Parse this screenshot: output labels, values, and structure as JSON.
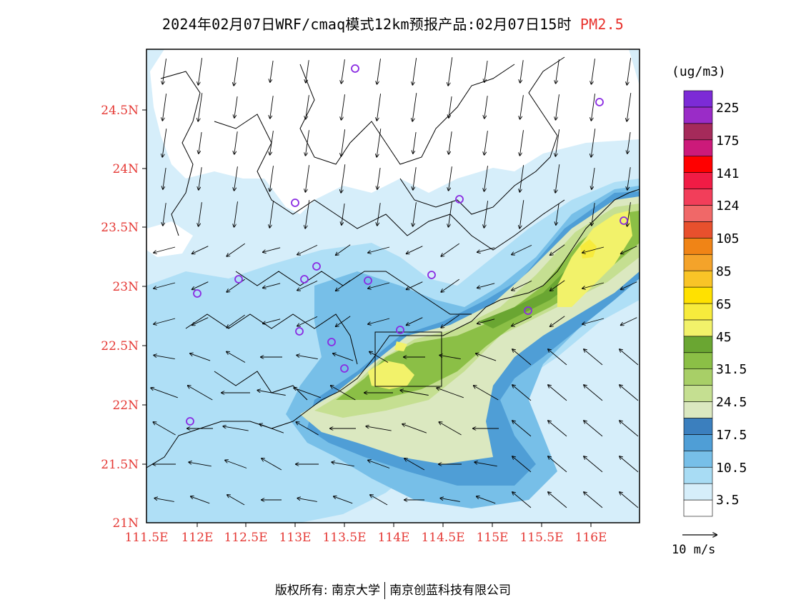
{
  "title": {
    "main": "2024年02月07日WRF/cmaq模式12km预报产品:02月07日15时",
    "species": "PM2.5"
  },
  "map": {
    "lat_labels": [
      "24.5N",
      "24N",
      "23.5N",
      "23N",
      "22.5N",
      "22N",
      "21.5N",
      "21N"
    ],
    "lon_labels": [
      "111.5E",
      "112E",
      "112.5E",
      "113E",
      "113.5E",
      "114E",
      "114.5E",
      "115E",
      "115.5E",
      "116E"
    ],
    "colors": {
      "label": "#e53935",
      "station": "#8a2be2"
    },
    "station_icon": "circle-station-icon"
  },
  "colorbar": {
    "unit": "(ug/m3)",
    "colors": [
      "#ffffff",
      "#d6eefa",
      "#a8dcf4",
      "#77bfe8",
      "#4f9ed6",
      "#3b7fbe",
      "#dbe8c0",
      "#c5df91",
      "#a8cf67",
      "#8bbf46",
      "#6aa632",
      "#f2f26a",
      "#f7eb3c",
      "#ffe100",
      "#f9c427",
      "#f4a32a",
      "#f08416",
      "#e8502d",
      "#f06868",
      "#f23e5a",
      "#f01c45",
      "#ff0000",
      "#cc1a7a",
      "#a52a5a",
      "#9a2cc7",
      "#7c2bd6"
    ],
    "ticks": [
      "3.5",
      "10.5",
      "17.5",
      "24.5",
      "31.5",
      "45",
      "65",
      "85",
      "105",
      "124",
      "141",
      "175",
      "225"
    ]
  },
  "wind_reference": {
    "label": "10 m/s"
  },
  "footer": {
    "left": "版权所有: 南京大学",
    "right": "南京创蓝科技有限公司"
  }
}
